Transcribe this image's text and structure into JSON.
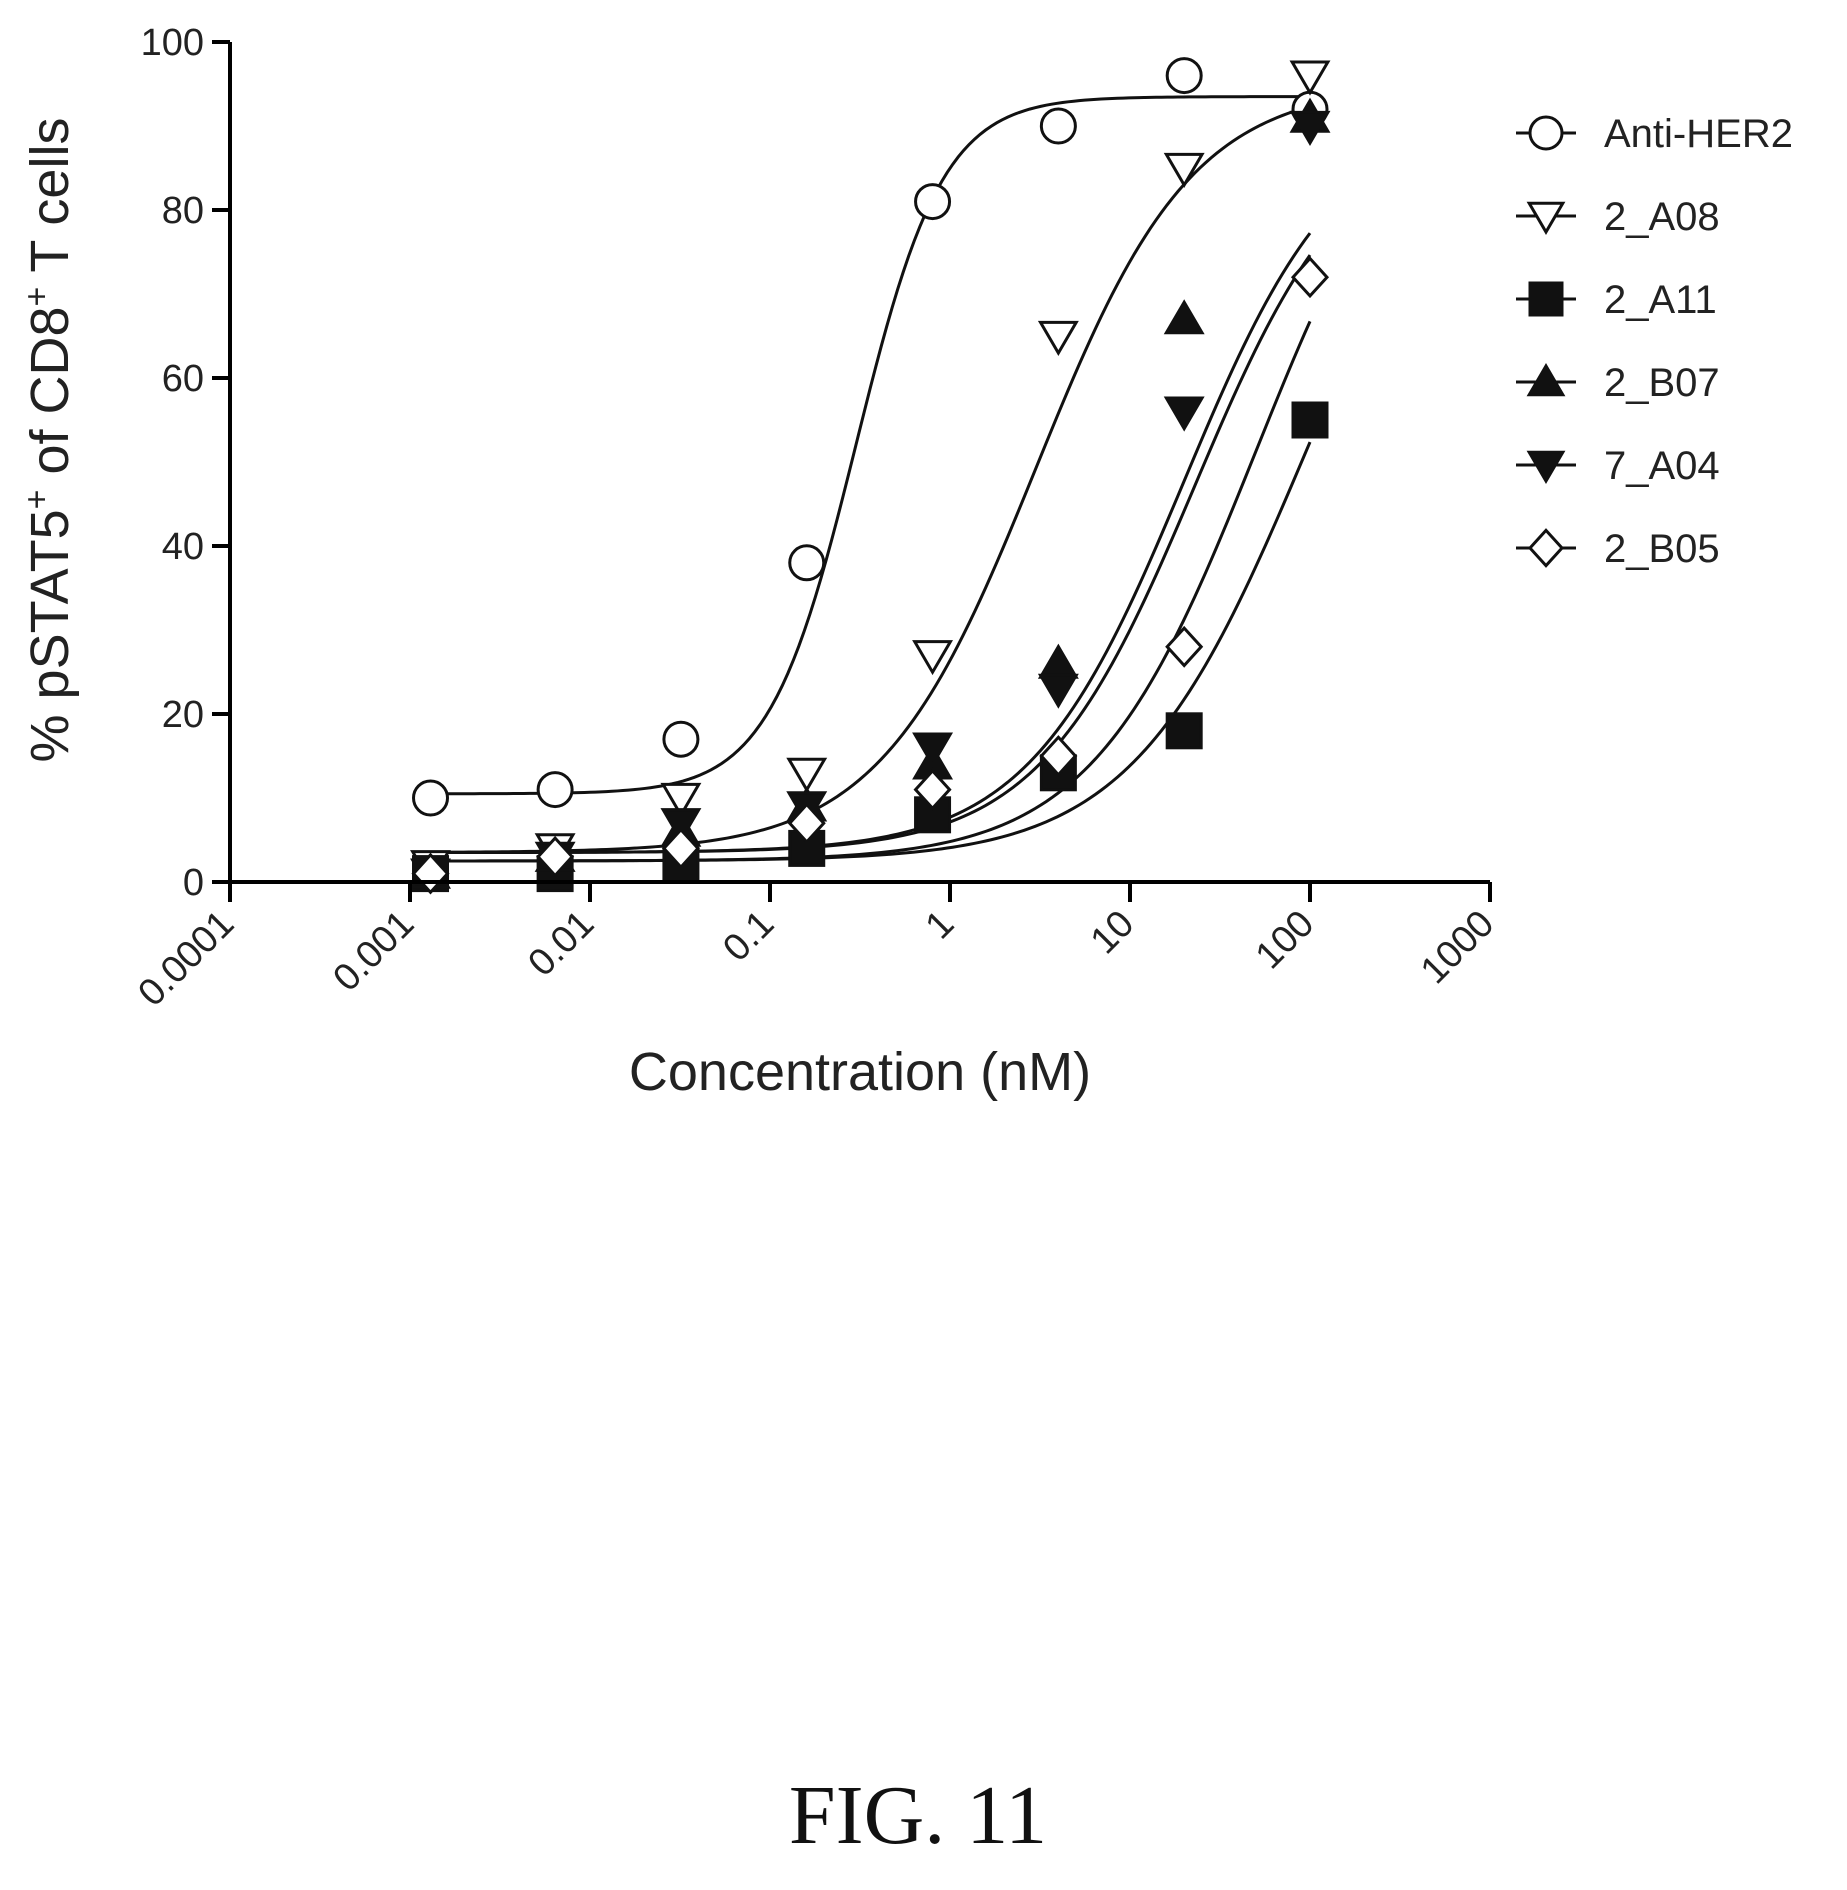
{
  "chart_data": {
    "type": "scatter",
    "x_scale": "log",
    "xlim": [
      0.0001,
      1000
    ],
    "ylim": [
      0,
      100
    ],
    "xlabel": "Concentration (nM)",
    "ylabel": "% pSTAT5",
    "ylabel_sup1": "+",
    "ylabel_mid": " of CD8",
    "ylabel_sup2": "+",
    "ylabel_tail": " T cells",
    "x_ticks": [
      0.0001,
      0.001,
      0.01,
      0.1,
      1,
      10,
      100,
      1000
    ],
    "x_tick_labels": [
      "0.0001",
      "0.001",
      "0.01",
      "0.1",
      "1",
      "10",
      "100",
      "1000"
    ],
    "y_ticks": [
      0,
      20,
      40,
      60,
      80,
      100
    ],
    "y_tick_labels": [
      "0",
      "20",
      "40",
      "60",
      "80",
      "100"
    ],
    "legend_position": "right",
    "grid": false,
    "fitted_curves": true,
    "series": [
      {
        "name": "Anti-HER2",
        "marker": "circle-open",
        "x": [
          0.0013,
          0.0064,
          0.032,
          0.16,
          0.8,
          4,
          20,
          100
        ],
        "y": [
          10,
          11,
          17,
          38,
          81,
          90,
          96,
          92
        ],
        "fit": {
          "bottom": 10.5,
          "top": 93.5,
          "ec50": 0.3,
          "hill": 1.8
        }
      },
      {
        "name": "2_A08",
        "marker": "triangle-down-open",
        "x": [
          0.0013,
          0.0064,
          0.032,
          0.16,
          0.8,
          4,
          20,
          100
        ],
        "y": [
          2,
          4,
          10,
          13,
          27,
          65,
          85,
          96
        ],
        "fit": {
          "bottom": 3.5,
          "top": 95,
          "ec50": 3.0,
          "hill": 1.0
        }
      },
      {
        "name": "2_A11",
        "marker": "square-filled",
        "x": [
          0.0013,
          0.0064,
          0.032,
          0.16,
          0.8,
          4,
          20,
          100
        ],
        "y": [
          1,
          1,
          2,
          4,
          8,
          13,
          18,
          55
        ],
        "fit": {
          "bottom": 2.5,
          "top": 100,
          "ec50": 95,
          "hill": 0.9
        }
      },
      {
        "name": "2_B07",
        "marker": "triangle-up-filled",
        "x": [
          0.0013,
          0.0064,
          0.032,
          0.16,
          0.8,
          4,
          20,
          100
        ],
        "y": [
          1,
          3,
          6,
          9,
          14,
          26,
          67,
          91
        ],
        "fit": {
          "bottom": 3.5,
          "top": 92,
          "ec50": 20,
          "hill": 1.0
        }
      },
      {
        "name": "7_A04",
        "marker": "triangle-down-filled",
        "x": [
          0.0013,
          0.0064,
          0.032,
          0.16,
          0.8,
          4,
          20,
          100
        ],
        "y": [
          1,
          3,
          7,
          9,
          16,
          23,
          56,
          90
        ],
        "fit": {
          "bottom": 3.5,
          "top": 91,
          "ec50": 23,
          "hill": 1.0
        }
      },
      {
        "name": "2_B05",
        "marker": "diamond-open",
        "x": [
          0.0013,
          0.0064,
          0.032,
          0.16,
          0.8,
          4,
          20,
          100
        ],
        "y": [
          1,
          3,
          4,
          7,
          11,
          15,
          28,
          72
        ],
        "fit": {
          "bottom": 2.5,
          "top": 100,
          "ec50": 50,
          "hill": 0.95
        }
      }
    ]
  },
  "caption": "FIG. 11"
}
